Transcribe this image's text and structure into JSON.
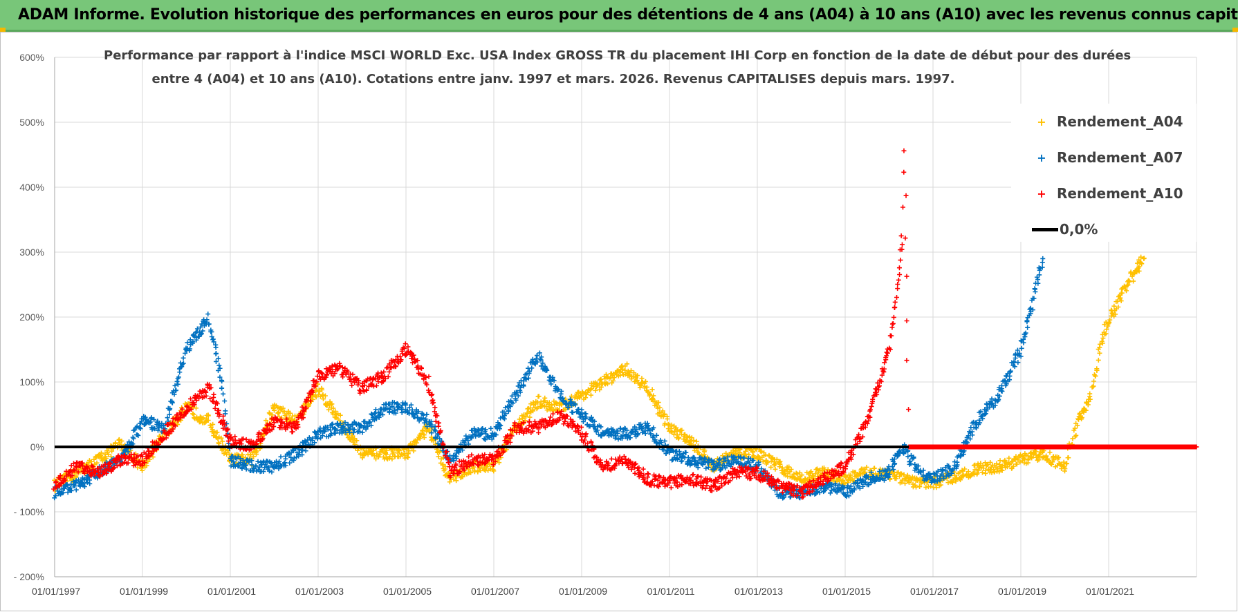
{
  "header": {
    "title": "ADAM Informe. Evolution historique des performances en euros pour des détentions de 4 ans (A04) à 10 ans (A10) avec les revenus connus capitalisés"
  },
  "chart_data": {
    "type": "scatter",
    "title_line1": "Performance par rapport à l'indice MSCI WORLD Exc. USA Index GROSS TR  du placement IHI Corp en fonction de la date de début pour des durées",
    "title_line2": "entre 4 (A04) et 10 ans (A10).  Cotations entre janv. 1997 et mars. 2026.  Revenus CAPITALISES depuis mars. 1997.",
    "xlim": [
      1997.0,
      2023.0
    ],
    "ylim": [
      -200,
      600
    ],
    "x_ticks": [
      1997,
      1999,
      2001,
      2003,
      2005,
      2007,
      2009,
      2011,
      2013,
      2015,
      2017,
      2019,
      2021
    ],
    "x_tick_labels": [
      "01/01/1997",
      "01/01/1999",
      "01/01/2001",
      "01/01/2003",
      "01/01/2005",
      "01/01/2007",
      "01/01/2009",
      "01/01/2011",
      "01/01/2013",
      "01/01/2015",
      "01/01/2017",
      "01/01/2019",
      "01/01/2021"
    ],
    "y_ticks": [
      -200,
      -100,
      0,
      100,
      200,
      300,
      400,
      500,
      600
    ],
    "y_tick_labels": [
      "- 200%",
      "- 100%",
      "0%",
      "100%",
      "200%",
      "300%",
      "400%",
      "500%",
      "600%"
    ],
    "grid": true,
    "legend_position": "top-right",
    "reference_line": {
      "name": "0,0%",
      "value": 0,
      "color": "#000000"
    },
    "series": [
      {
        "name": "Rendement_A04",
        "color": "#ffc000",
        "points": [
          [
            1997.0,
            -60
          ],
          [
            1997.5,
            -40
          ],
          [
            1998.0,
            -20
          ],
          [
            1998.5,
            5
          ],
          [
            1999.0,
            -30
          ],
          [
            1999.5,
            20
          ],
          [
            2000.0,
            60
          ],
          [
            2000.5,
            40
          ],
          [
            2001.0,
            -20
          ],
          [
            2001.5,
            -20
          ],
          [
            2002.0,
            60
          ],
          [
            2002.5,
            40
          ],
          [
            2003.0,
            90
          ],
          [
            2003.5,
            40
          ],
          [
            2004.0,
            -10
          ],
          [
            2004.5,
            -10
          ],
          [
            2005.0,
            -10
          ],
          [
            2005.5,
            30
          ],
          [
            2006.0,
            -50
          ],
          [
            2006.5,
            -30
          ],
          [
            2007.0,
            -30
          ],
          [
            2007.5,
            30
          ],
          [
            2008.0,
            70
          ],
          [
            2008.5,
            60
          ],
          [
            2009.0,
            80
          ],
          [
            2009.5,
            100
          ],
          [
            2010.0,
            120
          ],
          [
            2010.5,
            90
          ],
          [
            2011.0,
            30
          ],
          [
            2011.5,
            10
          ],
          [
            2012.0,
            -30
          ],
          [
            2012.5,
            -10
          ],
          [
            2013.0,
            -10
          ],
          [
            2013.5,
            -30
          ],
          [
            2014.0,
            -50
          ],
          [
            2014.5,
            -40
          ],
          [
            2015.0,
            -50
          ],
          [
            2015.5,
            -40
          ],
          [
            2016.0,
            -40
          ],
          [
            2016.5,
            -55
          ],
          [
            2017.0,
            -55
          ],
          [
            2017.5,
            -45
          ],
          [
            2018.0,
            -35
          ],
          [
            2018.5,
            -30
          ],
          [
            2019.0,
            -20
          ],
          [
            2019.5,
            -10
          ],
          [
            2020.0,
            -30
          ],
          [
            2020.3,
            40
          ],
          [
            2020.6,
            80
          ],
          [
            2020.9,
            180
          ],
          [
            2021.2,
            220
          ],
          [
            2021.5,
            260
          ],
          [
            2021.8,
            290
          ]
        ]
      },
      {
        "name": "Rendement_A07",
        "color": "#0070c0",
        "points": [
          [
            1997.0,
            -70
          ],
          [
            1997.5,
            -60
          ],
          [
            1998.0,
            -40
          ],
          [
            1998.5,
            -20
          ],
          [
            1999.0,
            40
          ],
          [
            1999.5,
            30
          ],
          [
            2000.0,
            150
          ],
          [
            2000.5,
            200
          ],
          [
            2000.8,
            100
          ],
          [
            2001.0,
            -20
          ],
          [
            2001.5,
            -30
          ],
          [
            2002.0,
            -30
          ],
          [
            2002.5,
            -10
          ],
          [
            2003.0,
            20
          ],
          [
            2003.5,
            30
          ],
          [
            2004.0,
            30
          ],
          [
            2004.5,
            60
          ],
          [
            2005.0,
            60
          ],
          [
            2005.5,
            40
          ],
          [
            2006.0,
            -20
          ],
          [
            2006.5,
            20
          ],
          [
            2007.0,
            20
          ],
          [
            2007.5,
            80
          ],
          [
            2008.0,
            140
          ],
          [
            2008.5,
            80
          ],
          [
            2009.0,
            50
          ],
          [
            2009.5,
            20
          ],
          [
            2010.0,
            20
          ],
          [
            2010.5,
            30
          ],
          [
            2011.0,
            -10
          ],
          [
            2011.5,
            -20
          ],
          [
            2012.0,
            -30
          ],
          [
            2012.5,
            -20
          ],
          [
            2013.0,
            -30
          ],
          [
            2013.5,
            -70
          ],
          [
            2014.0,
            -70
          ],
          [
            2014.5,
            -60
          ],
          [
            2015.0,
            -70
          ],
          [
            2015.5,
            -50
          ],
          [
            2016.0,
            -40
          ],
          [
            2016.3,
            0
          ],
          [
            2016.7,
            -40
          ],
          [
            2017.0,
            -50
          ],
          [
            2017.5,
            -30
          ],
          [
            2018.0,
            40
          ],
          [
            2018.5,
            80
          ],
          [
            2019.0,
            150
          ],
          [
            2019.3,
            230
          ],
          [
            2019.5,
            290
          ]
        ]
      },
      {
        "name": "Rendement_A10",
        "color": "#ff0000",
        "points": [
          [
            1997.0,
            -60
          ],
          [
            1997.5,
            -30
          ],
          [
            1998.0,
            -40
          ],
          [
            1998.5,
            -20
          ],
          [
            1999.0,
            -20
          ],
          [
            1999.5,
            20
          ],
          [
            2000.0,
            60
          ],
          [
            2000.5,
            90
          ],
          [
            2001.0,
            10
          ],
          [
            2001.5,
            0
          ],
          [
            2002.0,
            40
          ],
          [
            2002.5,
            30
          ],
          [
            2003.0,
            110
          ],
          [
            2003.5,
            120
          ],
          [
            2004.0,
            90
          ],
          [
            2004.5,
            110
          ],
          [
            2005.0,
            150
          ],
          [
            2005.5,
            100
          ],
          [
            2006.0,
            -40
          ],
          [
            2006.5,
            -20
          ],
          [
            2007.0,
            -20
          ],
          [
            2007.5,
            30
          ],
          [
            2008.0,
            30
          ],
          [
            2008.5,
            50
          ],
          [
            2009.0,
            20
          ],
          [
            2009.5,
            -30
          ],
          [
            2010.0,
            -20
          ],
          [
            2010.5,
            -50
          ],
          [
            2011.0,
            -55
          ],
          [
            2011.5,
            -50
          ],
          [
            2012.0,
            -60
          ],
          [
            2012.5,
            -40
          ],
          [
            2013.0,
            -40
          ],
          [
            2013.5,
            -60
          ],
          [
            2014.0,
            -70
          ],
          [
            2014.5,
            -50
          ],
          [
            2015.0,
            -30
          ],
          [
            2015.5,
            40
          ],
          [
            2016.0,
            150
          ],
          [
            2016.2,
            250
          ],
          [
            2016.3,
            330
          ],
          [
            2016.35,
            460
          ],
          [
            2016.45,
            0
          ],
          [
            2017.0,
            0
          ],
          [
            2018.0,
            0
          ],
          [
            2019.0,
            0
          ],
          [
            2020.0,
            0
          ],
          [
            2021.0,
            0
          ],
          [
            2022.0,
            0
          ],
          [
            2023.0,
            0
          ]
        ]
      }
    ]
  }
}
